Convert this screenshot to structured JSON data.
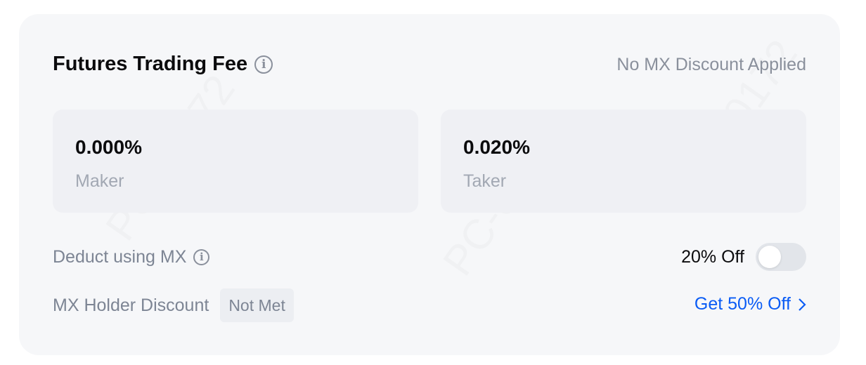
{
  "header": {
    "title": "Futures Trading Fee",
    "status": "No MX Discount Applied"
  },
  "fees": [
    {
      "value": "0.000%",
      "label": "Maker"
    },
    {
      "value": "0.020%",
      "label": "Taker"
    }
  ],
  "deduct": {
    "label": "Deduct using MX",
    "discount": "20% Off",
    "toggle_on": false
  },
  "holder": {
    "label": "MX Holder Discount",
    "badge": "Not Met",
    "link": "Get 50% Off"
  },
  "colors": {
    "accent": "#0a5cf5",
    "card_bg": "#f6f7f9",
    "box_bg": "#eff0f4"
  },
  "watermark": "PC-00172"
}
